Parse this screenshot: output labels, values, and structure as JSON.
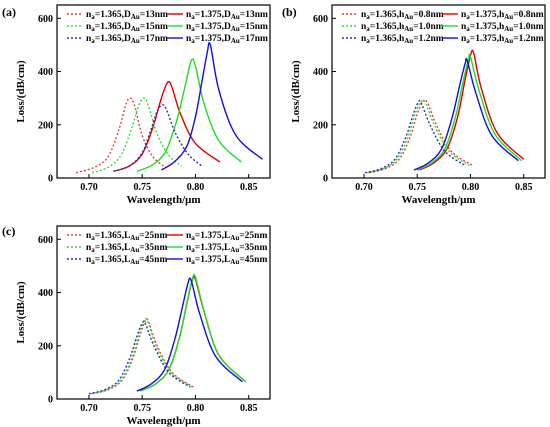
{
  "chart_data": [
    {
      "type": "line",
      "panel_label": "(a)",
      "xlabel": "Wavelength/μm",
      "ylabel": "Loss/(dB/cm)",
      "xlim": [
        0.67,
        0.87
      ],
      "ylim": [
        0,
        650
      ],
      "xticks": [
        0.7,
        0.75,
        0.8,
        0.85
      ],
      "xtick_labels": [
        "0.70",
        "0.75",
        "0.80",
        "0.85"
      ],
      "yticks": [
        0,
        200,
        400,
        600
      ],
      "ytick_labels": [
        "0",
        "200",
        "400",
        "600"
      ],
      "legend_columns": 2,
      "series": [
        {
          "legend_main": "n",
          "legend_sub1": "a",
          "legend_mid": "=1.365,D",
          "legend_sub2": "Au",
          "legend_tail": "=13nm",
          "color": "#e8403a",
          "dash": true,
          "x": [
            0.688,
            0.705,
            0.718,
            0.728,
            0.735,
            0.739,
            0.743,
            0.75,
            0.76,
            0.772
          ],
          "y": [
            20,
            40,
            80,
            180,
            280,
            300,
            270,
            160,
            80,
            40
          ]
        },
        {
          "legend_main": "n",
          "legend_sub1": "a",
          "legend_mid": "=1.375,D",
          "legend_sub2": "Au",
          "legend_tail": "=13nm",
          "color": "#e00000",
          "dash": false,
          "x": [
            0.723,
            0.738,
            0.75,
            0.76,
            0.768,
            0.774,
            0.778,
            0.786,
            0.8,
            0.823
          ],
          "y": [
            25,
            45,
            90,
            190,
            300,
            360,
            340,
            240,
            130,
            60
          ]
        },
        {
          "legend_main": "n",
          "legend_sub1": "a",
          "legend_mid": "=1.365,D",
          "legend_sub2": "Au",
          "legend_tail": "=15nm",
          "color": "#33dd33",
          "dash": true,
          "x": [
            0.703,
            0.718,
            0.73,
            0.74,
            0.747,
            0.752,
            0.756,
            0.764,
            0.775,
            0.787
          ],
          "y": [
            20,
            40,
            85,
            185,
            275,
            300,
            270,
            165,
            85,
            45
          ]
        },
        {
          "legend_main": "n",
          "legend_sub1": "a",
          "legend_mid": "=1.375,D",
          "legend_sub2": "Au",
          "legend_tail": "=15nm",
          "color": "#22dd22",
          "dash": false,
          "x": [
            0.745,
            0.76,
            0.772,
            0.782,
            0.79,
            0.796,
            0.8,
            0.808,
            0.822,
            0.843
          ],
          "y": [
            25,
            50,
            100,
            210,
            340,
            440,
            420,
            280,
            140,
            60
          ]
        },
        {
          "legend_main": "n",
          "legend_sub1": "a",
          "legend_mid": "=1.365,D",
          "legend_sub2": "Au",
          "legend_tail": "=17nm",
          "color": "#2233bb",
          "dash": true,
          "x": [
            0.723,
            0.738,
            0.75,
            0.758,
            0.764,
            0.769,
            0.773,
            0.781,
            0.793,
            0.806
          ],
          "y": [
            25,
            45,
            95,
            180,
            250,
            275,
            255,
            170,
            90,
            45
          ]
        },
        {
          "legend_main": "n",
          "legend_sub1": "a",
          "legend_mid": "=1.375,D",
          "legend_sub2": "Au",
          "legend_tail": "=17nm",
          "color": "#1010dd",
          "dash": false,
          "x": [
            0.768,
            0.78,
            0.792,
            0.8,
            0.806,
            0.811,
            0.814,
            0.822,
            0.838,
            0.863
          ],
          "y": [
            30,
            60,
            120,
            230,
            360,
            470,
            500,
            330,
            160,
            70
          ]
        }
      ]
    },
    {
      "type": "line",
      "panel_label": "(b)",
      "xlabel": "Wavelength/μm",
      "ylabel": "Loss/(dB/cm)",
      "xlim": [
        0.67,
        0.87
      ],
      "ylim": [
        0,
        650
      ],
      "xticks": [
        0.7,
        0.75,
        0.8,
        0.85
      ],
      "xtick_labels": [
        "0.70",
        "0.75",
        "0.80",
        "0.85"
      ],
      "yticks": [
        0,
        200,
        400,
        600
      ],
      "ytick_labels": [
        "0",
        "200",
        "400",
        "600"
      ],
      "legend_columns": 2,
      "series": [
        {
          "legend_main": "n",
          "legend_sub1": "a",
          "legend_mid": "=1.365,h",
          "legend_sub2": "Au",
          "legend_tail": "=0.8nm",
          "color": "#e8403a",
          "dash": true,
          "x": [
            0.705,
            0.72,
            0.733,
            0.743,
            0.75,
            0.756,
            0.76,
            0.768,
            0.782,
            0.803
          ],
          "y": [
            20,
            35,
            70,
            150,
            240,
            290,
            280,
            200,
            100,
            45
          ]
        },
        {
          "legend_main": "n",
          "legend_sub1": "a",
          "legend_mid": "=1.375,h",
          "legend_sub2": "Au",
          "legend_tail": "=0.8nm",
          "color": "#e00000",
          "dash": false,
          "x": [
            0.752,
            0.765,
            0.778,
            0.788,
            0.795,
            0.8,
            0.803,
            0.81,
            0.825,
            0.85
          ],
          "y": [
            30,
            55,
            110,
            230,
            370,
            460,
            470,
            340,
            170,
            70
          ]
        },
        {
          "legend_main": "n",
          "legend_sub1": "a",
          "legend_mid": "=1.365,h",
          "legend_sub2": "Au",
          "legend_tail": "=1.0nm",
          "color": "#33dd33",
          "dash": true,
          "x": [
            0.703,
            0.718,
            0.731,
            0.741,
            0.748,
            0.754,
            0.758,
            0.766,
            0.78,
            0.8
          ],
          "y": [
            20,
            35,
            70,
            150,
            240,
            290,
            280,
            200,
            100,
            45
          ]
        },
        {
          "legend_main": "n",
          "legend_sub1": "a",
          "legend_mid": "=1.375,h",
          "legend_sub2": "Au",
          "legend_tail": "=1.0nm",
          "color": "#22dd22",
          "dash": false,
          "x": [
            0.75,
            0.763,
            0.776,
            0.786,
            0.793,
            0.798,
            0.8,
            0.808,
            0.823,
            0.848
          ],
          "y": [
            30,
            55,
            110,
            230,
            360,
            445,
            455,
            330,
            165,
            65
          ]
        },
        {
          "legend_main": "n",
          "legend_sub1": "a",
          "legend_mid": "=1.365,h",
          "legend_sub2": "Au",
          "legend_tail": "=1.2nm",
          "color": "#2233bb",
          "dash": true,
          "x": [
            0.701,
            0.716,
            0.729,
            0.739,
            0.746,
            0.751,
            0.754,
            0.762,
            0.776,
            0.796
          ],
          "y": [
            20,
            35,
            70,
            150,
            235,
            285,
            280,
            200,
            100,
            45
          ]
        },
        {
          "legend_main": "n",
          "legend_sub1": "a",
          "legend_mid": "=1.375,h",
          "legend_sub2": "Au",
          "legend_tail": "=1.2nm",
          "color": "#1010dd",
          "dash": false,
          "x": [
            0.747,
            0.76,
            0.773,
            0.783,
            0.79,
            0.795,
            0.797,
            0.805,
            0.82,
            0.845
          ],
          "y": [
            30,
            55,
            110,
            230,
            350,
            430,
            440,
            320,
            160,
            65
          ]
        }
      ]
    },
    {
      "type": "line",
      "panel_label": "(c)",
      "xlabel": "Wavelength/μm",
      "ylabel": "Loss/(dB/cm)",
      "xlim": [
        0.67,
        0.87
      ],
      "ylim": [
        0,
        650
      ],
      "xticks": [
        0.7,
        0.75,
        0.8,
        0.85
      ],
      "xtick_labels": [
        "0.70",
        "0.75",
        "0.80",
        "0.85"
      ],
      "yticks": [
        0,
        200,
        400,
        600
      ],
      "ytick_labels": [
        "0",
        "200",
        "400",
        "600"
      ],
      "legend_columns": 2,
      "series": [
        {
          "legend_main": "n",
          "legend_sub1": "a",
          "legend_mid": "=1.365,L",
          "legend_sub2": "Au",
          "legend_tail": "=25nm",
          "color": "#e8403a",
          "dash": true,
          "x": [
            0.703,
            0.718,
            0.731,
            0.741,
            0.748,
            0.753,
            0.756,
            0.764,
            0.778,
            0.798
          ],
          "y": [
            20,
            35,
            70,
            150,
            240,
            295,
            290,
            200,
            100,
            45
          ]
        },
        {
          "legend_main": "n",
          "legend_sub1": "a",
          "legend_mid": "=1.375,L",
          "legend_sub2": "Au",
          "legend_tail": "=25nm",
          "color": "#e00000",
          "dash": false,
          "x": [
            0.748,
            0.762,
            0.775,
            0.785,
            0.792,
            0.797,
            0.8,
            0.808,
            0.822,
            0.847
          ],
          "y": [
            30,
            55,
            110,
            230,
            360,
            445,
            450,
            330,
            165,
            65
          ]
        },
        {
          "legend_main": "n",
          "legend_sub1": "a",
          "legend_mid": "=1.365,L",
          "legend_sub2": "Au",
          "legend_tail": "=35nm",
          "color": "#33dd33",
          "dash": true,
          "x": [
            0.702,
            0.717,
            0.73,
            0.74,
            0.747,
            0.752,
            0.755,
            0.763,
            0.777,
            0.797
          ],
          "y": [
            20,
            35,
            70,
            150,
            240,
            295,
            292,
            200,
            100,
            45
          ]
        },
        {
          "legend_main": "n",
          "legend_sub1": "a",
          "legend_mid": "=1.375,L",
          "legend_sub2": "Au",
          "legend_tail": "=35nm",
          "color": "#22dd22",
          "dash": false,
          "x": [
            0.748,
            0.762,
            0.775,
            0.785,
            0.792,
            0.797,
            0.8,
            0.808,
            0.822,
            0.847
          ],
          "y": [
            30,
            55,
            110,
            230,
            362,
            450,
            458,
            332,
            165,
            65
          ]
        },
        {
          "legend_main": "n",
          "legend_sub1": "a",
          "legend_mid": "=1.365,L",
          "legend_sub2": "Au",
          "legend_tail": "=45nm",
          "color": "#2233bb",
          "dash": true,
          "x": [
            0.7,
            0.715,
            0.728,
            0.738,
            0.745,
            0.75,
            0.753,
            0.761,
            0.775,
            0.795
          ],
          "y": [
            20,
            35,
            70,
            150,
            235,
            285,
            283,
            200,
            100,
            45
          ]
        },
        {
          "legend_main": "n",
          "legend_sub1": "a",
          "legend_mid": "=1.375,L",
          "legend_sub2": "Au",
          "legend_tail": "=45nm",
          "color": "#1010dd",
          "dash": false,
          "x": [
            0.745,
            0.758,
            0.771,
            0.781,
            0.788,
            0.793,
            0.796,
            0.804,
            0.819,
            0.844
          ],
          "y": [
            30,
            55,
            110,
            230,
            350,
            435,
            445,
            320,
            160,
            65
          ]
        }
      ]
    }
  ]
}
